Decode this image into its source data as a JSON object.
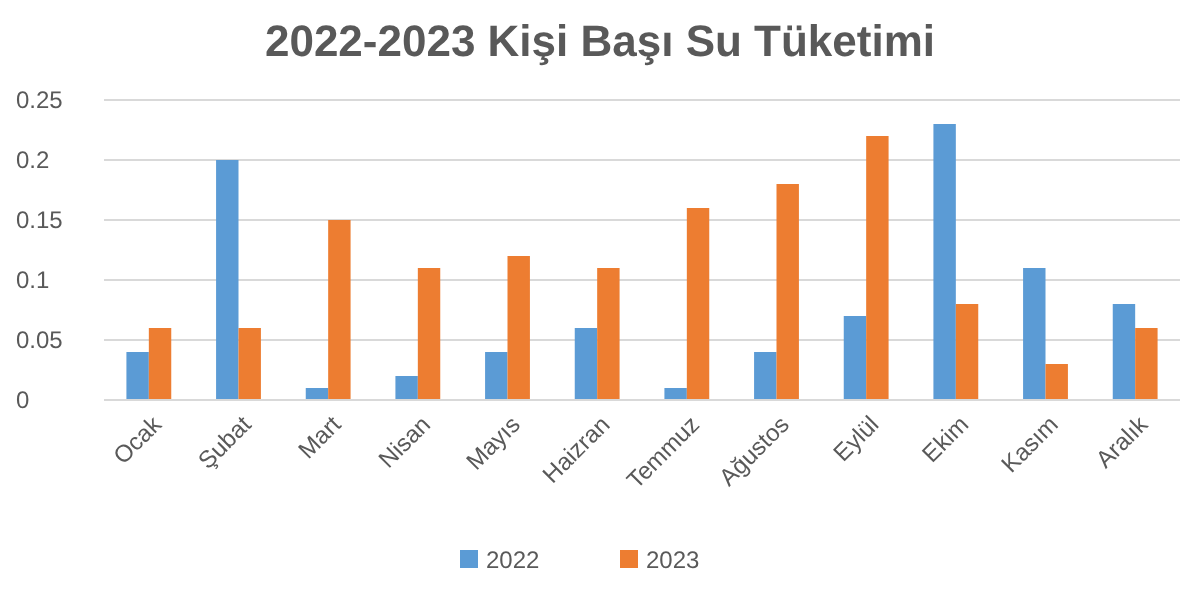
{
  "chart_data": {
    "type": "bar",
    "title": "2022-2023 Kişi Başı Su Tüketimi",
    "categories": [
      "Ocak",
      "Şubat",
      "Mart",
      "Nisan",
      "Mayıs",
      "Haizran",
      "Temmuz",
      "Ağustos",
      "Eylül",
      "Ekim",
      "Kasım",
      "Aralık"
    ],
    "series": [
      {
        "name": "2022",
        "color": "#5b9bd5",
        "values": [
          0.04,
          0.2,
          0.01,
          0.02,
          0.04,
          0.06,
          0.01,
          0.04,
          0.07,
          0.23,
          0.11,
          0.08
        ]
      },
      {
        "name": "2023",
        "color": "#ed7d31",
        "values": [
          0.06,
          0.06,
          0.15,
          0.11,
          0.12,
          0.11,
          0.16,
          0.18,
          0.22,
          0.08,
          0.03,
          0.06
        ]
      }
    ],
    "ylim": [
      0,
      0.25
    ],
    "yticks": [
      0,
      0.05,
      0.1,
      0.15,
      0.2,
      0.25
    ],
    "grid": "y",
    "legend": "bottom"
  }
}
